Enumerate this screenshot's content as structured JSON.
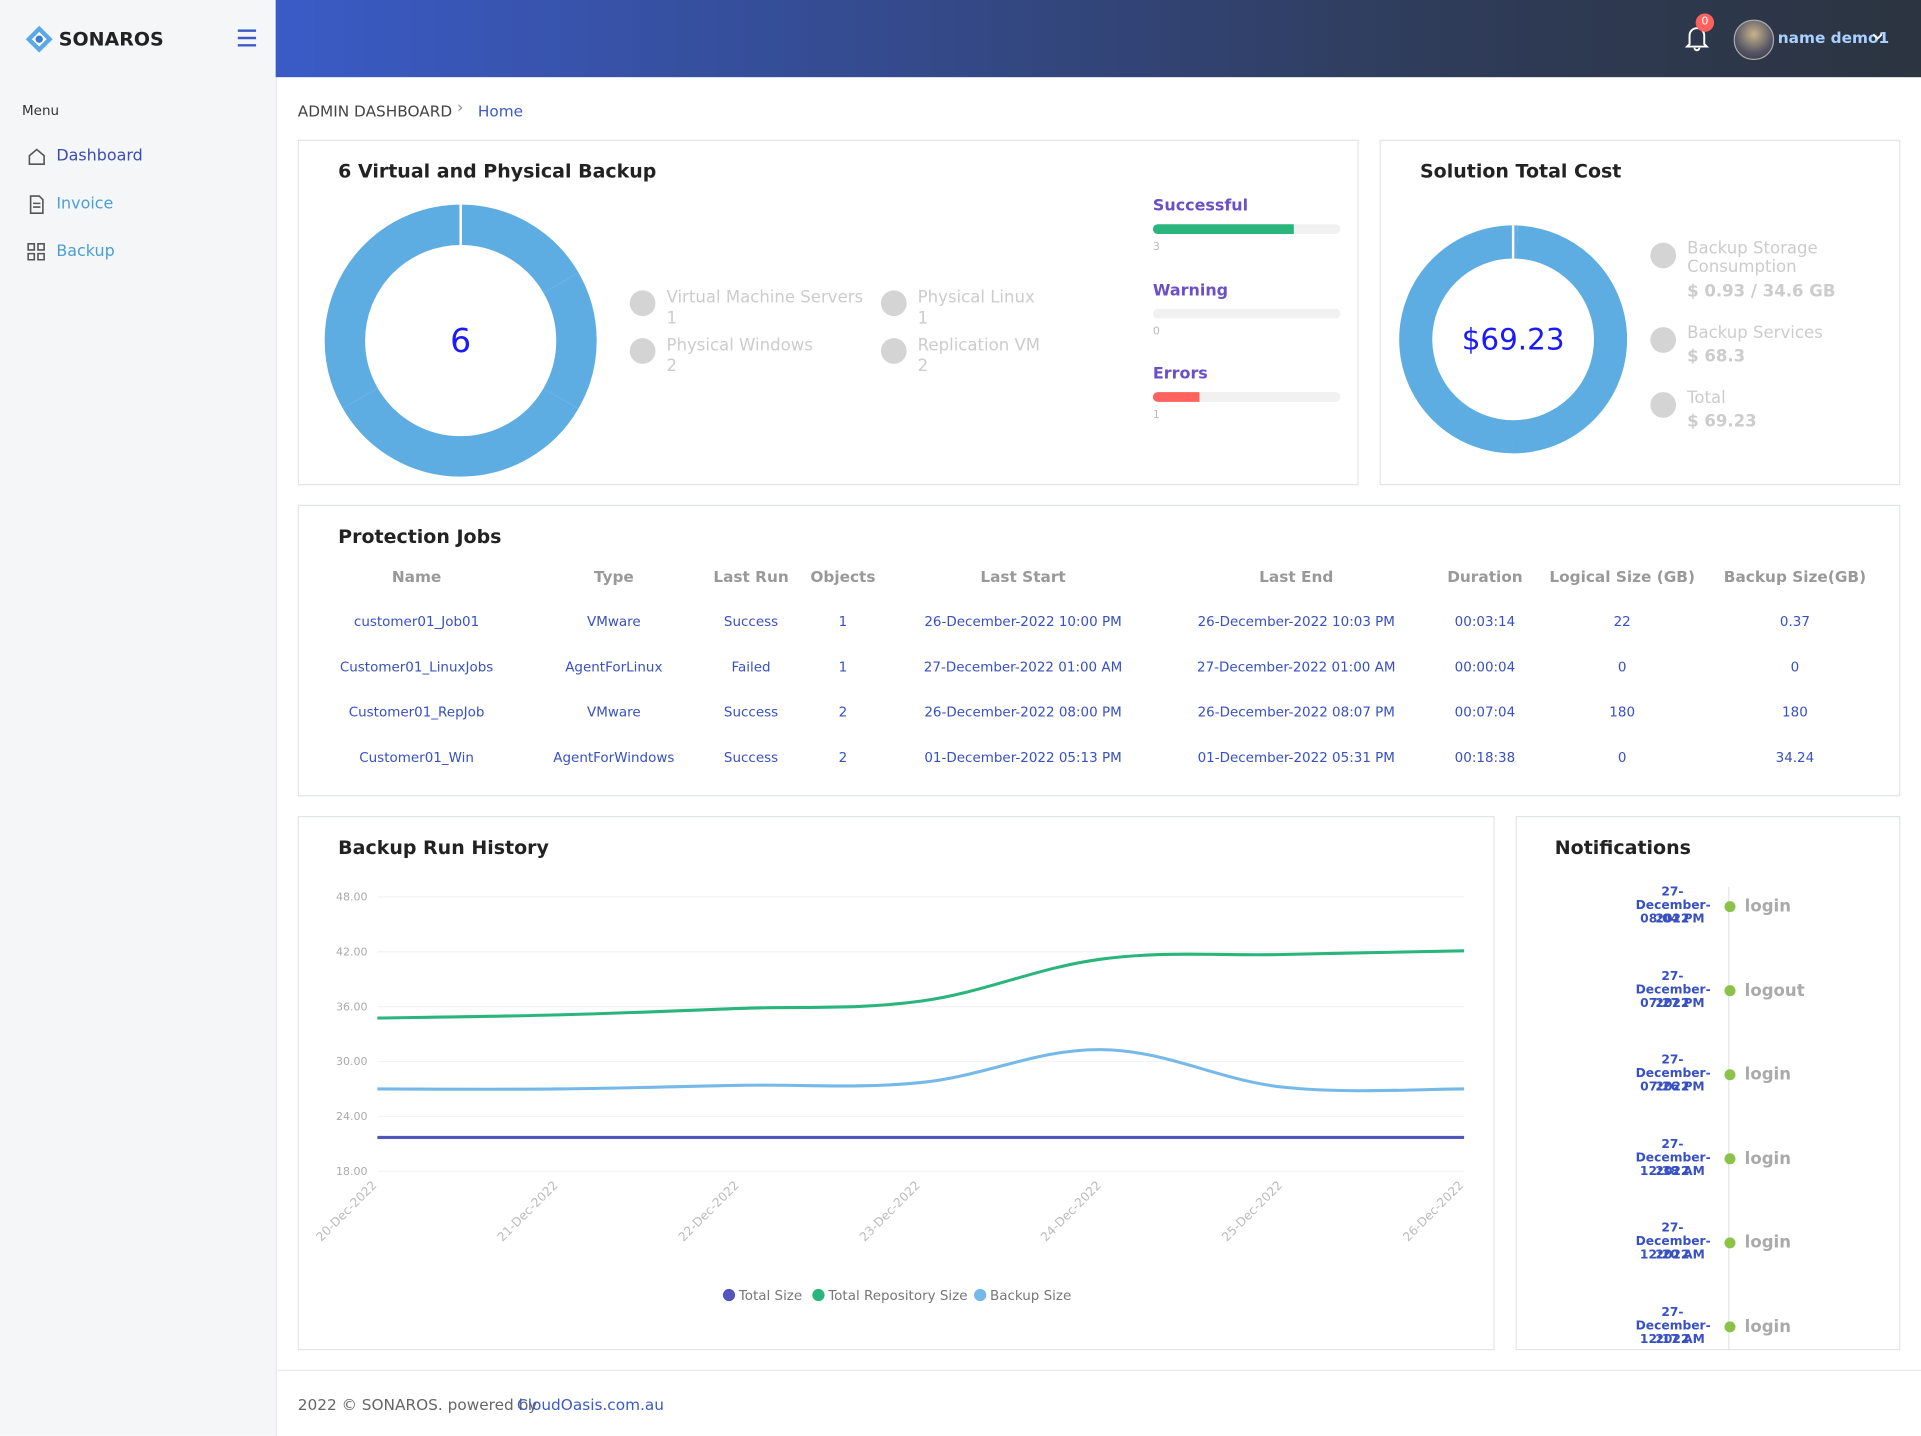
{
  "header": {
    "brand": "SONAROS",
    "notification_count": 0,
    "user": "name demo1"
  },
  "sidebar": {
    "menu_title": "Menu",
    "items": [
      "Dashboard",
      "Invoice",
      "Backup"
    ]
  },
  "breadcrumb": [
    "ADMIN DASHBOARD",
    "Home"
  ],
  "backup_summary": {
    "title": "6 Virtual and Physical Backup",
    "chart_data": {
      "type": "donut",
      "center_label": "6",
      "categories": [
        "Virtual Machine Servers",
        "Physical Linux",
        "Physical Windows",
        "Replication VM"
      ],
      "values": [
        1,
        1,
        2,
        2
      ],
      "color": "#5dade2"
    },
    "status": [
      {
        "name": "Successful",
        "value": 3,
        "color": "#2ab57d"
      },
      {
        "name": "Warning",
        "value": 0,
        "color": "#ffbf53"
      },
      {
        "name": "Errors",
        "value": 1,
        "color": "#fd625e"
      }
    ]
  },
  "cost": {
    "title": "Solution Total Cost",
    "chart_data": {
      "type": "donut",
      "center_label": "$69.23",
      "categories": [
        "Backup Storage Consumption",
        "Backup Services",
        "Total"
      ],
      "values": [
        0.93,
        68.3,
        69.23
      ],
      "value_labels": [
        "$ 0.93 / 34.6 GB",
        "$ 68.3",
        "$ 69.23"
      ],
      "color": "#5dade2"
    }
  },
  "jobs": {
    "title": "Protection Jobs",
    "columns": [
      "Name",
      "Type",
      "Last Run",
      "Objects",
      "Last Start",
      "Last End",
      "Duration",
      "Logical Size (GB)",
      "Backup Size(GB)"
    ],
    "rows": [
      [
        "customer01_Job01",
        "VMware",
        "Success",
        1,
        "26-December-2022 10:00 PM",
        "26-December-2022 10:03 PM",
        "00:03:14",
        22,
        0.37
      ],
      [
        "Customer01_LinuxJobs",
        "AgentForLinux",
        "Failed",
        1,
        "27-December-2022 01:00 AM",
        "27-December-2022 01:00 AM",
        "00:00:04",
        0,
        0
      ],
      [
        "Customer01_RepJob",
        "VMware",
        "Success",
        2,
        "26-December-2022 08:00 PM",
        "26-December-2022 08:07 PM",
        "00:07:04",
        180,
        180
      ],
      [
        "Customer01_Win",
        "AgentForWindows",
        "Success",
        2,
        "01-December-2022 05:13 PM",
        "01-December-2022 05:31 PM",
        "00:18:38",
        0,
        34.24
      ]
    ]
  },
  "history": {
    "title": "Backup Run History",
    "chart_data": {
      "type": "line",
      "categories": [
        "20-Dec-2022",
        "21-Dec-2022",
        "22-Dec-2022",
        "23-Dec-2022",
        "24-Dec-2022",
        "25-Dec-2022",
        "26-Dec-2022"
      ],
      "ylim": [
        18,
        48
      ],
      "yticks": [
        {
          "value": 18,
          "label": "18.00"
        },
        {
          "value": 24,
          "label": "24.00"
        },
        {
          "value": 30,
          "label": "30.00"
        },
        {
          "value": 36,
          "label": "36.00"
        },
        {
          "value": 42,
          "label": "42.00"
        },
        {
          "value": 48,
          "label": "48.00"
        }
      ],
      "grid": true,
      "series": [
        {
          "name": "Total Size",
          "color": "#5156be",
          "values": [
            21.7,
            21.7,
            21.7,
            21.7,
            21.7,
            21.7,
            21.7
          ]
        },
        {
          "name": "Total Repository Size",
          "color": "#2ab57d",
          "values": [
            34.75,
            35.1,
            35.8,
            36.6,
            41.2,
            41.7,
            42.1
          ]
        },
        {
          "name": "Backup Size",
          "color": "#74b9e8",
          "values": [
            27.0,
            27.0,
            27.4,
            27.7,
            31.3,
            27.2,
            27.0
          ]
        }
      ]
    }
  },
  "notifications": {
    "title": "Notifications",
    "items": [
      {
        "date": "27-December-2022",
        "time": "08:04 PM",
        "action": "login"
      },
      {
        "date": "27-December-2022",
        "time": "07:27 PM",
        "action": "logout"
      },
      {
        "date": "27-December-2022",
        "time": "07:26 PM",
        "action": "login"
      },
      {
        "date": "27-December-2022",
        "time": "12:38 AM",
        "action": "login"
      },
      {
        "date": "27-December-2022",
        "time": "12:20 AM",
        "action": "login"
      },
      {
        "date": "27-December-2022",
        "time": "12:17 AM",
        "action": "login"
      }
    ]
  },
  "footer": {
    "text": "2022 © SONAROS. powered by",
    "link": "CloudOasis.com.au"
  }
}
